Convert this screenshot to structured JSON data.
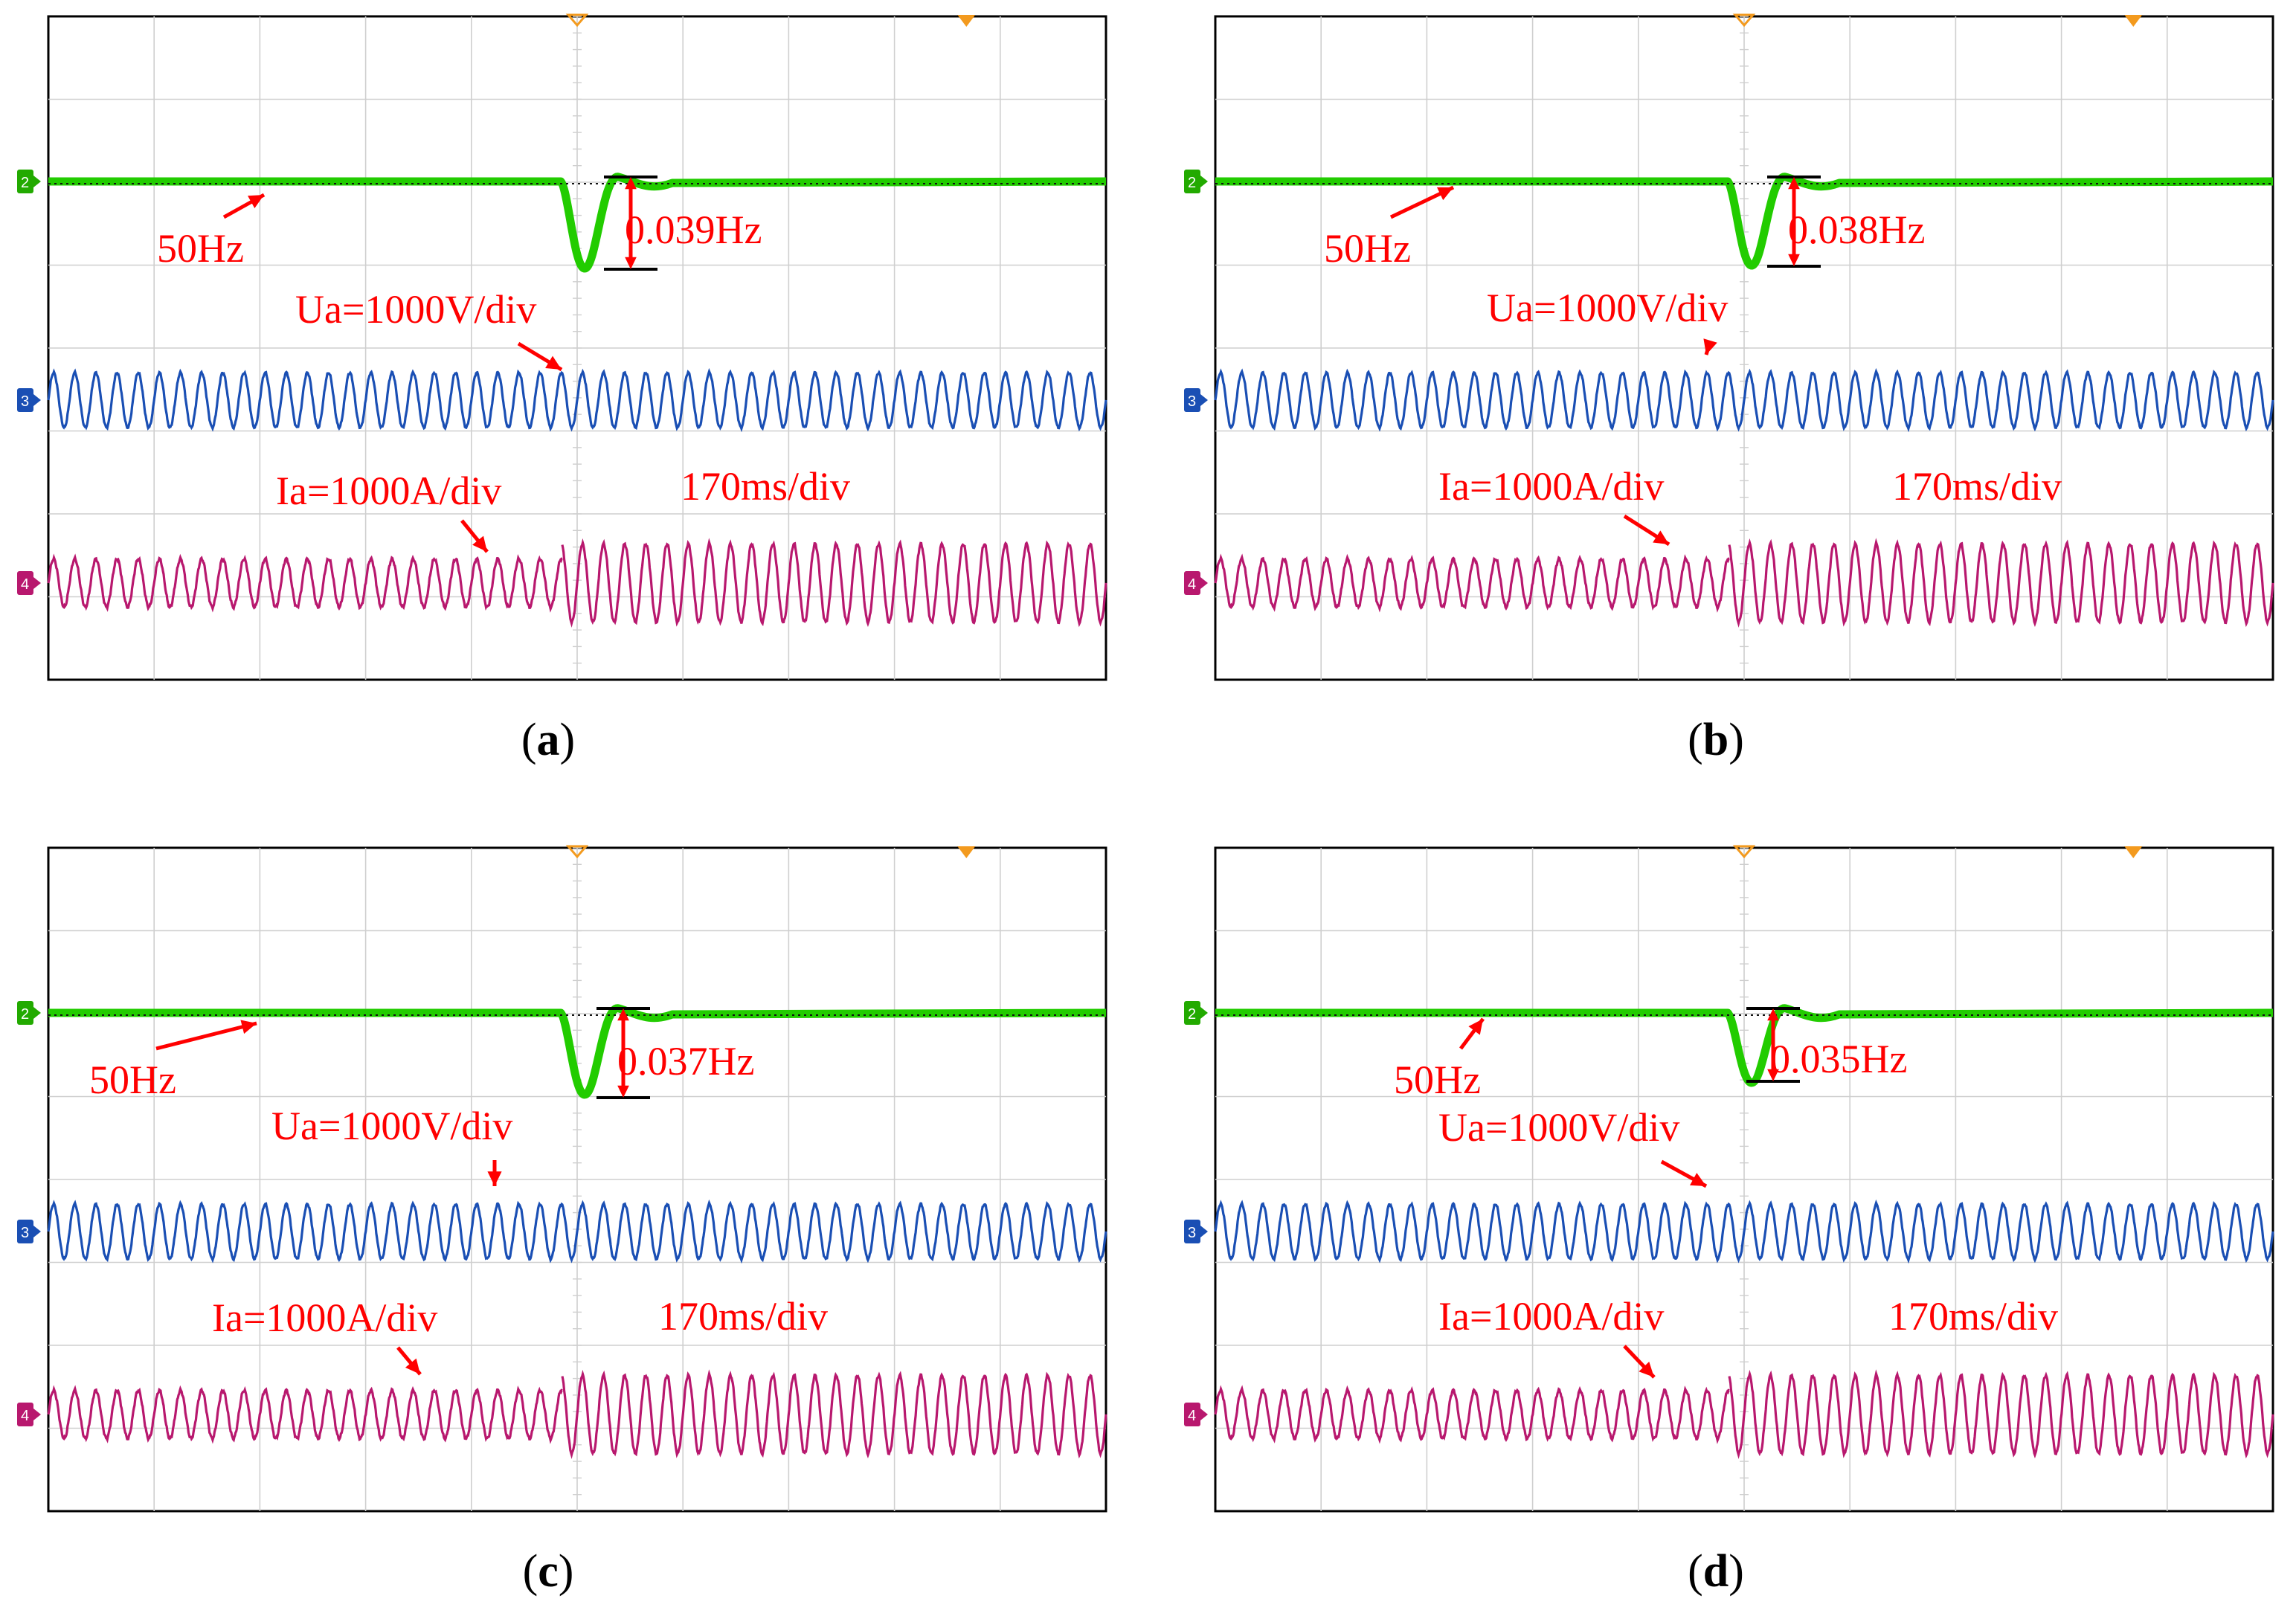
{
  "figure": {
    "panels": [
      {
        "caption_letter": "a",
        "freq_label": "50Hz",
        "dev_label": "0.039Hz",
        "ua_label": "Ua=1000V/div",
        "ia_label": "Ia=1000A/div",
        "time_label": "170ms/div"
      },
      {
        "caption_letter": "b",
        "freq_label": "50Hz",
        "dev_label": "0.038Hz",
        "ua_label": "Ua=1000V/div",
        "ia_label": "Ia=1000A/div",
        "time_label": "170ms/div"
      },
      {
        "caption_letter": "c",
        "freq_label": "50Hz",
        "dev_label": "0.037Hz",
        "ua_label": "Ua=1000V/div",
        "ia_label": "Ia=1000A/div",
        "time_label": "170ms/div"
      },
      {
        "caption_letter": "d",
        "freq_label": "50Hz",
        "dev_label": "0.035Hz",
        "ua_label": "Ua=1000V/div",
        "ia_label": "Ia=1000A/div",
        "time_label": "170ms/div"
      }
    ],
    "channel_markers": {
      "freq": "2",
      "voltage": "3",
      "current": "4"
    }
  },
  "chart_data": [
    {
      "type": "line",
      "title": "(a)",
      "time_per_div": "170ms/div",
      "divisions": 10,
      "trigger_division": 5,
      "series": [
        {
          "name": "Frequency",
          "color": "#22cc00",
          "nominal": 50,
          "unit": "Hz",
          "dip_depth": 0.039
        },
        {
          "name": "Ua",
          "color": "#1a4fb4",
          "scale": "1000V/div",
          "cycles": 50,
          "amplitude_div": 0.33,
          "amplitude_after_div": 0.33
        },
        {
          "name": "Ia",
          "color": "#b8186e",
          "scale": "1000A/div",
          "cycles": 50,
          "amplitude_div": 0.29,
          "amplitude_after_div": 0.47
        }
      ]
    },
    {
      "type": "line",
      "title": "(b)",
      "time_per_div": "170ms/div",
      "divisions": 10,
      "trigger_division": 5,
      "series": [
        {
          "name": "Frequency",
          "color": "#22cc00",
          "nominal": 50,
          "unit": "Hz",
          "dip_depth": 0.038
        },
        {
          "name": "Ua",
          "color": "#1a4fb4",
          "scale": "1000V/div",
          "cycles": 50,
          "amplitude_div": 0.33,
          "amplitude_after_div": 0.33
        },
        {
          "name": "Ia",
          "color": "#b8186e",
          "scale": "1000A/div",
          "cycles": 50,
          "amplitude_div": 0.29,
          "amplitude_after_div": 0.47
        }
      ]
    },
    {
      "type": "line",
      "title": "(c)",
      "time_per_div": "170ms/div",
      "divisions": 10,
      "trigger_division": 5,
      "series": [
        {
          "name": "Frequency",
          "color": "#22cc00",
          "nominal": 50,
          "unit": "Hz",
          "dip_depth": 0.037
        },
        {
          "name": "Ua",
          "color": "#1a4fb4",
          "scale": "1000V/div",
          "cycles": 50,
          "amplitude_div": 0.33,
          "amplitude_after_div": 0.33
        },
        {
          "name": "Ia",
          "color": "#b8186e",
          "scale": "1000A/div",
          "cycles": 50,
          "amplitude_div": 0.29,
          "amplitude_after_div": 0.47
        }
      ]
    },
    {
      "type": "line",
      "title": "(d)",
      "time_per_div": "170ms/div",
      "divisions": 10,
      "trigger_division": 5,
      "series": [
        {
          "name": "Frequency",
          "color": "#22cc00",
          "nominal": 50,
          "unit": "Hz",
          "dip_depth": 0.035
        },
        {
          "name": "Ua",
          "color": "#1a4fb4",
          "scale": "1000V/div",
          "cycles": 50,
          "amplitude_div": 0.33,
          "amplitude_after_div": 0.33
        },
        {
          "name": "Ia",
          "color": "#b8186e",
          "scale": "1000A/div",
          "cycles": 50,
          "amplitude_div": 0.29,
          "amplitude_after_div": 0.47
        }
      ]
    }
  ]
}
